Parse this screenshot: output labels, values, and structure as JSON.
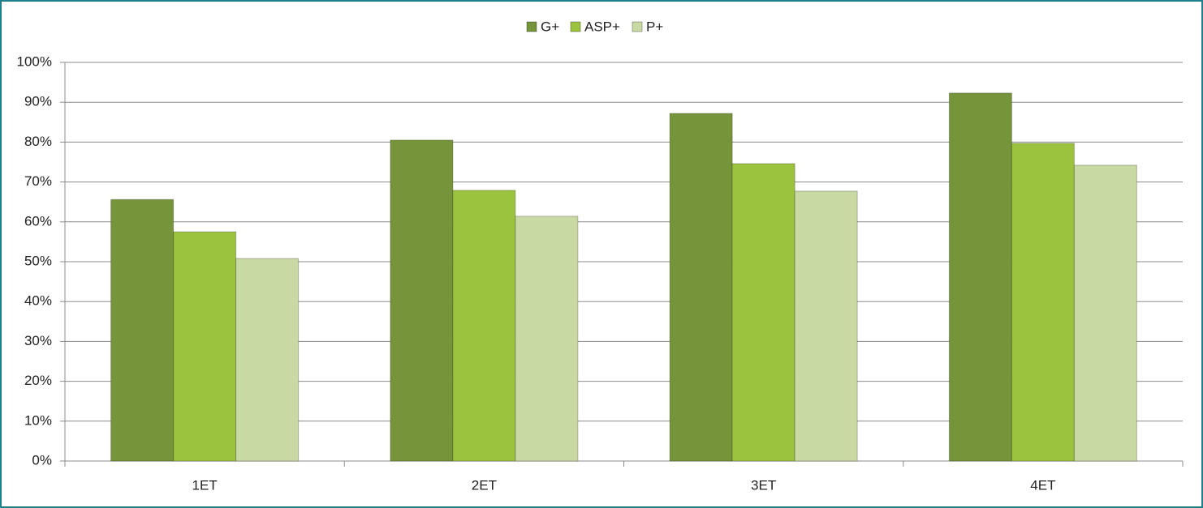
{
  "chart_data": {
    "type": "bar",
    "categories": [
      "1ET",
      "2ET",
      "3ET",
      "4ET"
    ],
    "series": [
      {
        "name": "G+",
        "color": "#76953a",
        "values": [
          65.6,
          80.5,
          87.2,
          92.3
        ]
      },
      {
        "name": "ASP+",
        "color": "#9cc33e",
        "values": [
          57.5,
          67.9,
          74.6,
          79.7
        ]
      },
      {
        "name": "P+",
        "color": "#c9d9a3",
        "values": [
          50.8,
          61.4,
          67.7,
          74.2
        ]
      }
    ],
    "ylim": [
      0,
      100
    ],
    "yticks": [
      {
        "value": 0,
        "label": "0%"
      },
      {
        "value": 10,
        "label": "10%"
      },
      {
        "value": 20,
        "label": "20%"
      },
      {
        "value": 30,
        "label": "30%"
      },
      {
        "value": 40,
        "label": "40%"
      },
      {
        "value": 50,
        "label": "50%"
      },
      {
        "value": 60,
        "label": "60%"
      },
      {
        "value": 70,
        "label": "70%"
      },
      {
        "value": 80,
        "label": "80%"
      },
      {
        "value": 90,
        "label": "90%"
      },
      {
        "value": 100,
        "label": "100%"
      }
    ],
    "grid": true,
    "legend": "top"
  }
}
